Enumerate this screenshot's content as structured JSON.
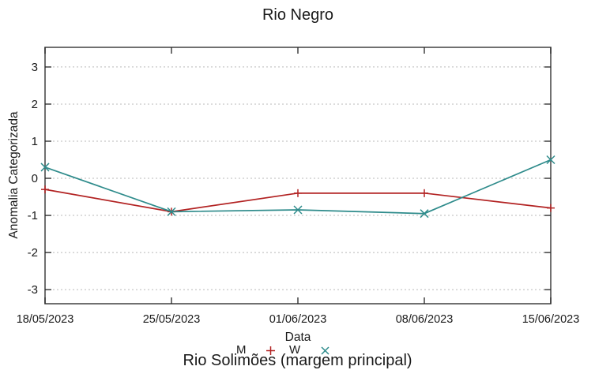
{
  "chart_data": {
    "type": "line",
    "title": "Rio Negro",
    "xlabel": "Data",
    "ylabel": "Anomalia Categorizada",
    "categories": [
      "18/05/2023",
      "25/05/2023",
      "01/06/2023",
      "08/06/2023",
      "15/06/2023"
    ],
    "series": [
      {
        "name": "M",
        "color": "#b22222",
        "marker": "plus",
        "values": [
          -0.3,
          -0.9,
          -0.4,
          -0.4,
          -0.8
        ]
      },
      {
        "name": "W",
        "color": "#2e8b8b",
        "marker": "cross",
        "values": [
          0.3,
          -0.9,
          -0.85,
          -0.95,
          0.5
        ]
      }
    ],
    "yticks": [
      -3,
      -2,
      -1,
      0,
      1,
      2,
      3
    ],
    "ylim": [
      -3.38,
      3.53
    ],
    "grid": true,
    "grid_style": "dotted",
    "legend_position": "bottom-center",
    "frame_color": "#4d4d4d",
    "grid_color": "#b8b8b8",
    "tick_label_color": "#1a1a1a"
  },
  "footer": {
    "partial_next_title": "Rio Solimões (margem principal)"
  }
}
